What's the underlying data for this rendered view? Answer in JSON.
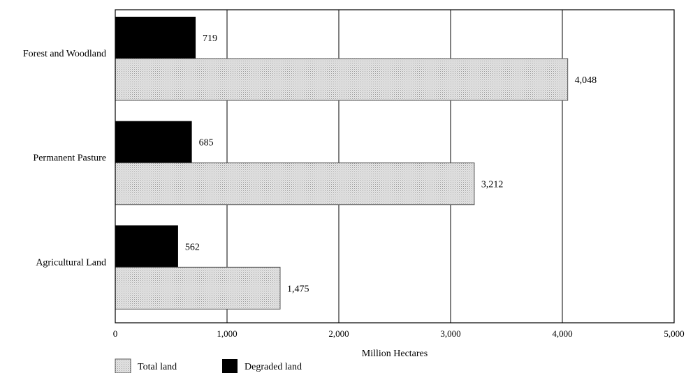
{
  "chart_data": {
    "type": "bar",
    "orientation": "horizontal",
    "categories": [
      "Forest and Woodland",
      "Permanent Pasture",
      "Agricultural Land"
    ],
    "series": [
      {
        "name": "Degraded land",
        "values": [
          719,
          685,
          562
        ],
        "color": "#000000"
      },
      {
        "name": "Total land",
        "values": [
          4048,
          3212,
          1475
        ],
        "color": "#d9d9d9"
      }
    ],
    "data_labels": {
      "Degraded land": [
        "719",
        "685",
        "562"
      ],
      "Total land": [
        "4,048",
        "3,212",
        "1,475"
      ]
    },
    "xlabel": "Million Hectares",
    "ylabel": "",
    "title": "",
    "xlim": [
      0,
      5000
    ],
    "xticks": [
      0,
      1000,
      2000,
      3000,
      4000,
      5000
    ],
    "xtick_labels": [
      "0",
      "1,000",
      "2,000",
      "3,000",
      "4,000",
      "5,000"
    ],
    "grid": "vertical",
    "legend": {
      "position": "bottom-left",
      "entries": [
        "Total land",
        "Degraded land"
      ]
    }
  }
}
